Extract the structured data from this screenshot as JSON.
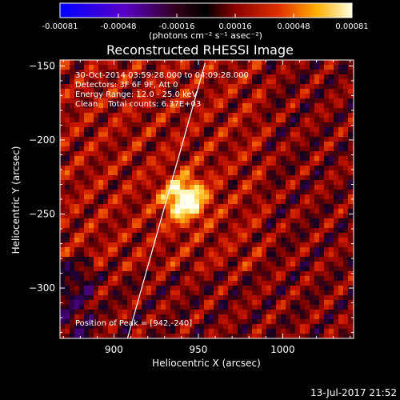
{
  "colorbar": {
    "ticks": [
      "-0.00081",
      "-0.00048",
      "-0.00016",
      "0.00016",
      "0.00048",
      "0.00081"
    ],
    "units": "(photons cm⁻² s⁻¹ asec⁻²)"
  },
  "chart_data": {
    "type": "heatmap",
    "title": "Reconstructed RHESSI Image",
    "xlabel": "Heliocentric X (arcsec)",
    "ylabel": "Heliocentric Y (arcsec)",
    "xlim": [
      868,
      1042
    ],
    "ylim": [
      -334,
      -146
    ],
    "x_ticks": [
      900,
      950,
      1000
    ],
    "y_ticks": [
      -150,
      -200,
      -250,
      -300
    ],
    "x_tick_labels": [
      "900",
      "950",
      "1000"
    ],
    "y_tick_labels": [
      "−150",
      "−200",
      "−250",
      "−300"
    ],
    "colorbar_range": [
      -0.00081,
      0.00081
    ],
    "peak": [
      942,
      -240
    ],
    "limb_line": [
      [
        908,
        -334
      ],
      [
        954,
        -148
      ]
    ],
    "annotations": [
      "30-Oct-2014 03:59:28.000 to 04:09:28.000",
      "Detectors: 3F 6F 9F, Att 0",
      "Energy Range: 12.0 - 25.0 keV",
      "Clean    Total counts: 6.37E+03",
      "Position of Peak = [942,-240]"
    ]
  },
  "footer": {
    "timestamp": "13-Jul-2017 21:52"
  }
}
